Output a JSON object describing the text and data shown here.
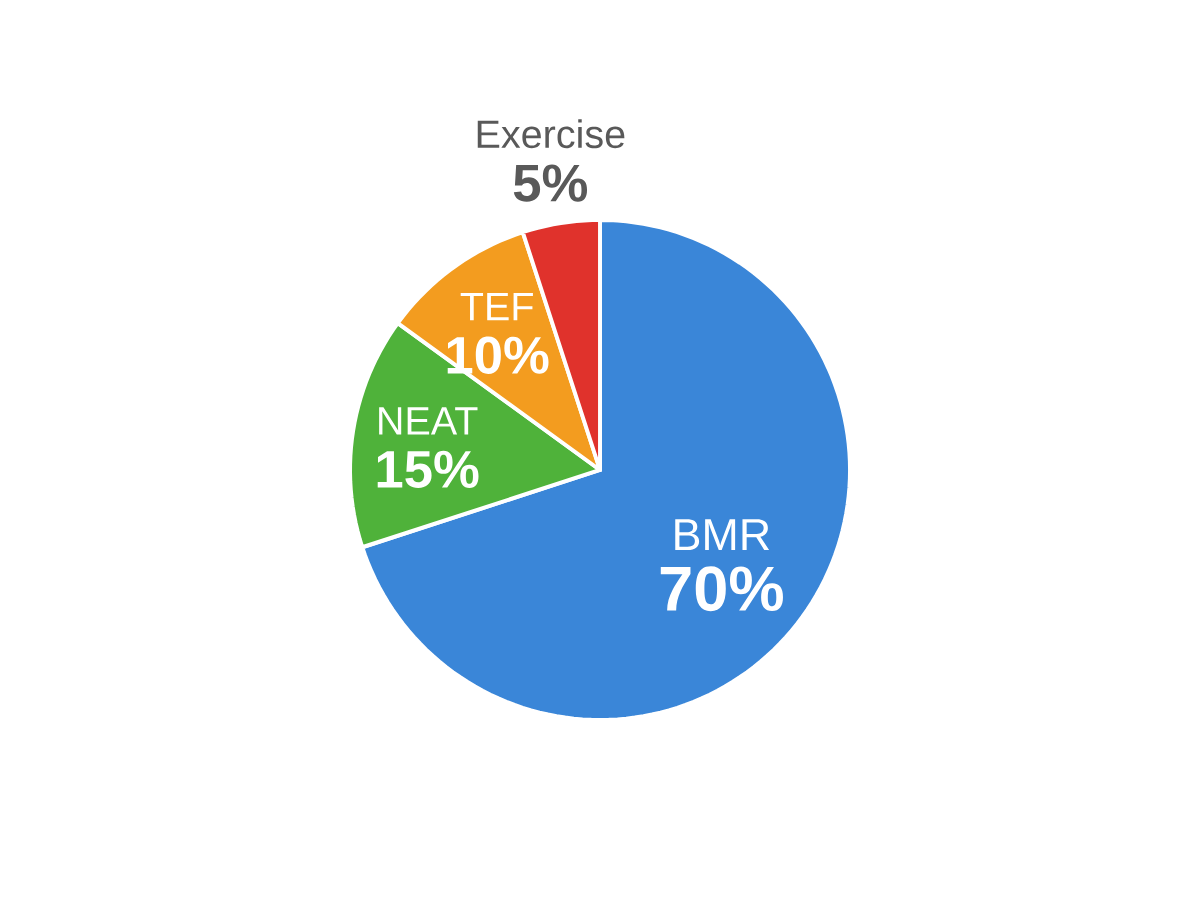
{
  "chart_data": {
    "type": "pie",
    "categories": [
      "BMR",
      "NEAT",
      "TEF",
      "Exercise"
    ],
    "values": [
      70,
      15,
      10,
      5
    ],
    "value_labels": [
      "70%",
      "15%",
      "10%",
      "5%"
    ],
    "colors": [
      "#3a86d8",
      "#4fb23a",
      "#f39c1f",
      "#e0322c"
    ]
  }
}
